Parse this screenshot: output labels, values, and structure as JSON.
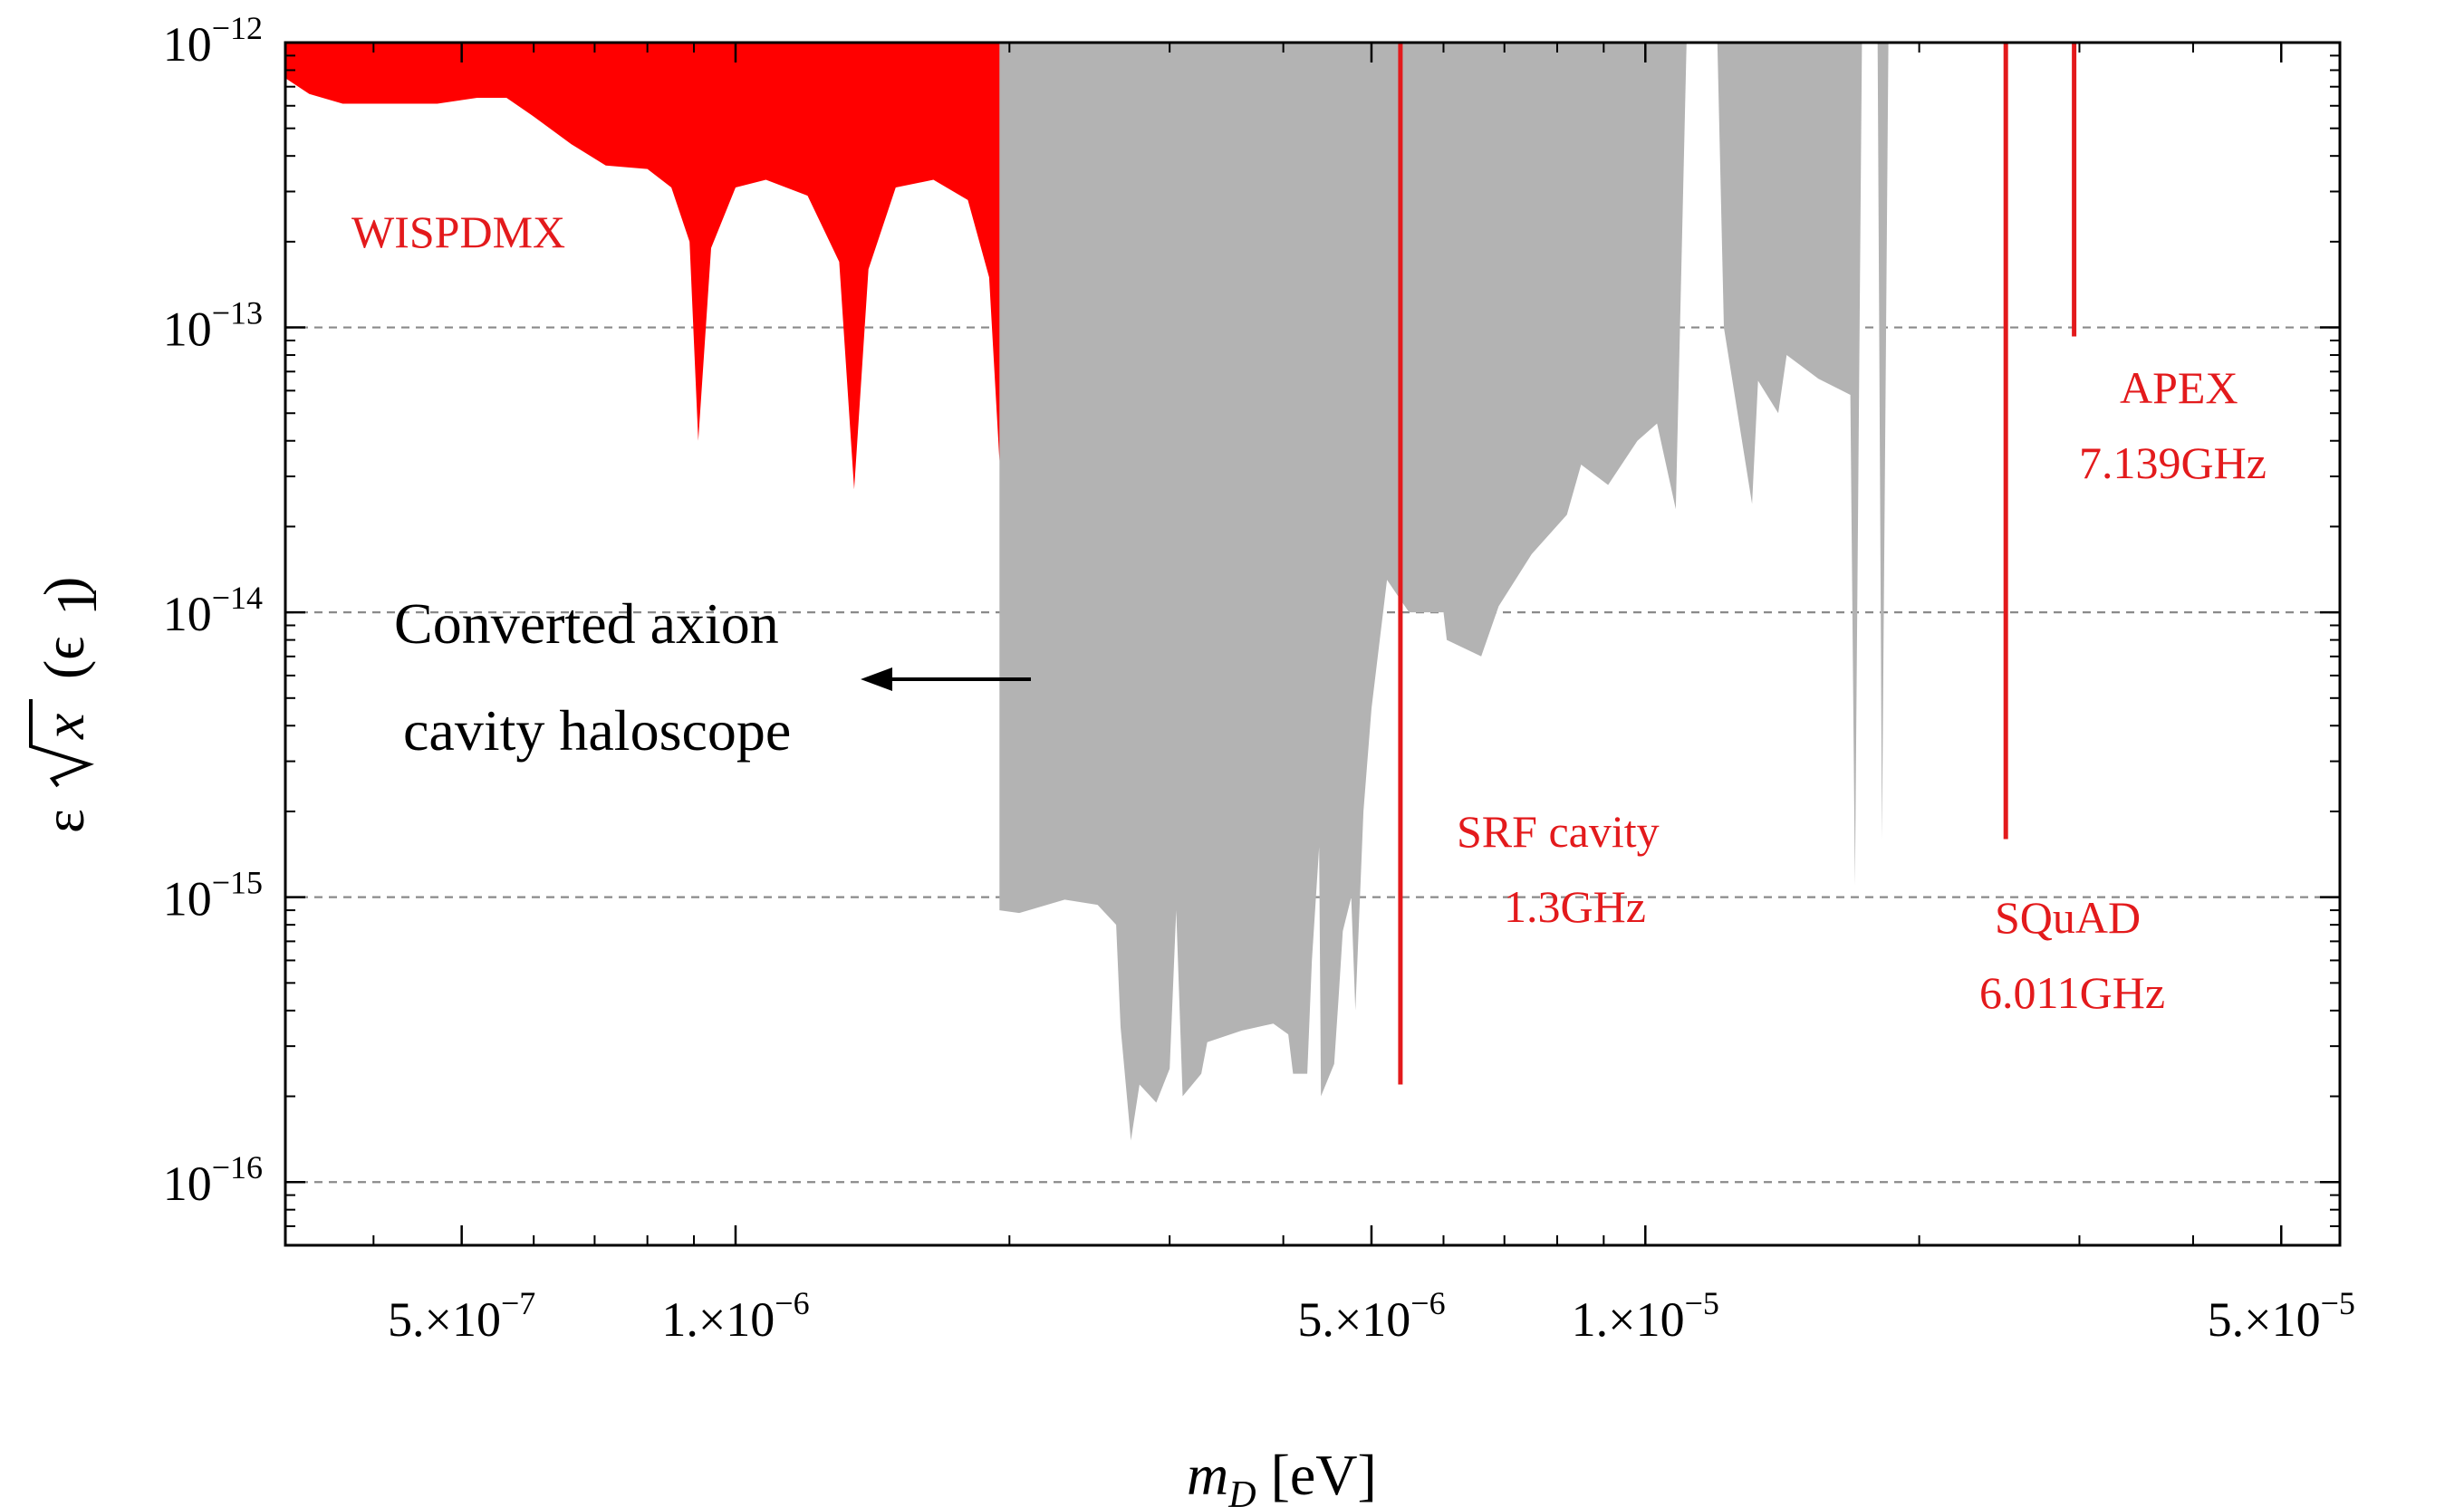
{
  "chart_data": {
    "type": "area",
    "x_scale": "log",
    "y_scale": "log",
    "xlim": [
      3.2e-07,
      5.8e-05
    ],
    "ylim": [
      6e-17,
      1e-12
    ],
    "xlabel": {
      "main": "m",
      "sub": "D",
      "unit": "[eV]"
    },
    "ylabel": {
      "prefix": "ε",
      "radicand": "x",
      "suffix": "(ϵ",
      "suffix_sub": "1",
      "close": ")"
    },
    "x_ticks": [
      {
        "value": 5e-07,
        "mant": "5.×10",
        "exp": "−7"
      },
      {
        "value": 1e-06,
        "mant": "1.×10",
        "exp": "−6"
      },
      {
        "value": 5e-06,
        "mant": "5.×10",
        "exp": "−6"
      },
      {
        "value": 1e-05,
        "mant": "1.×10",
        "exp": "−5"
      },
      {
        "value": 5e-05,
        "mant": "5.×10",
        "exp": "−5"
      }
    ],
    "y_ticks": [
      {
        "value": 1e-12,
        "mant": "10",
        "exp": "−12"
      },
      {
        "value": 1e-13,
        "mant": "10",
        "exp": "−13"
      },
      {
        "value": 1e-14,
        "mant": "10",
        "exp": "−14"
      },
      {
        "value": 1e-15,
        "mant": "10",
        "exp": "−15"
      },
      {
        "value": 1e-16,
        "mant": "10",
        "exp": "−16"
      }
    ],
    "grid": {
      "horizontal_dashed": [
        1e-13,
        1e-14,
        1e-15,
        1e-16
      ]
    },
    "colors": {
      "wispdmx": "#ff0000",
      "haloscope": "#b3b3b3",
      "lines": "#e31a1c",
      "axis": "#000000"
    },
    "series": [
      {
        "name": "WISPDMX",
        "kind": "exclusion_region",
        "boundary": [
          [
            3.2e-07,
            7.5e-13
          ],
          [
            3.4e-07,
            6.6e-13
          ],
          [
            3.7e-07,
            6.1e-13
          ],
          [
            4.3e-07,
            6.1e-13
          ],
          [
            4.7e-07,
            6.1e-13
          ],
          [
            5.2e-07,
            6.4e-13
          ],
          [
            5.6e-07,
            6.4e-13
          ],
          [
            6e-07,
            5.5e-13
          ],
          [
            6.6e-07,
            4.4e-13
          ],
          [
            7.2e-07,
            3.7e-13
          ],
          [
            8e-07,
            3.6e-13
          ],
          [
            8.5e-07,
            3.1e-13
          ],
          [
            8.9e-07,
            2e-13
          ],
          [
            9.1e-07,
            4e-14
          ],
          [
            9.4e-07,
            1.9e-13
          ],
          [
            1e-06,
            3.1e-13
          ],
          [
            1.08e-06,
            3.3e-13
          ],
          [
            1.2e-06,
            2.9e-13
          ],
          [
            1.3e-06,
            1.7e-13
          ],
          [
            1.35e-06,
            2.7e-14
          ],
          [
            1.4e-06,
            1.6e-13
          ],
          [
            1.5e-06,
            3.1e-13
          ],
          [
            1.65e-06,
            3.3e-13
          ],
          [
            1.8e-06,
            2.8e-13
          ],
          [
            1.9e-06,
            1.5e-13
          ],
          [
            1.95e-06,
            3.4e-14
          ],
          [
            1.97e-06,
            1.3e-13
          ],
          [
            2.06e-06,
            3.1e-13
          ],
          [
            2.12e-06,
            3.1e-13
          ],
          [
            2.12e-06,
            1e-12
          ]
        ]
      },
      {
        "name": "Converted axion cavity haloscope",
        "kind": "exclusion_region",
        "boundary": [
          [
            1.95e-06,
            9e-16
          ],
          [
            2.05e-06,
            8.8e-16
          ],
          [
            2.3e-06,
            9.8e-16
          ],
          [
            2.5e-06,
            9.4e-16
          ],
          [
            2.62e-06,
            8e-16
          ],
          [
            2.65e-06,
            3.5e-16
          ],
          [
            2.72e-06,
            1.4e-16
          ],
          [
            2.78e-06,
            2.2e-16
          ],
          [
            2.9e-06,
            1.9e-16
          ],
          [
            3e-06,
            2.5e-16
          ],
          [
            3.05e-06,
            9e-16
          ],
          [
            3.1e-06,
            2e-16
          ],
          [
            3.25e-06,
            2.4e-16
          ],
          [
            3.3e-06,
            3.1e-16
          ],
          [
            3.6e-06,
            3.4e-16
          ],
          [
            3.9e-06,
            3.6e-16
          ],
          [
            4.05e-06,
            3.3e-16
          ],
          [
            4.1e-06,
            2.4e-16
          ],
          [
            4.25e-06,
            2.4e-16
          ],
          [
            4.3e-06,
            6e-16
          ],
          [
            4.38e-06,
            1.5e-15
          ],
          [
            4.4e-06,
            2e-16
          ],
          [
            4.55e-06,
            2.6e-16
          ],
          [
            4.6e-06,
            4.4e-16
          ],
          [
            4.65e-06,
            7.6e-16
          ],
          [
            4.75e-06,
            1e-15
          ],
          [
            4.8e-06,
            4e-16
          ],
          [
            4.9e-06,
            2e-15
          ],
          [
            5e-06,
            4.6e-15
          ],
          [
            5.2e-06,
            1.3e-14
          ],
          [
            5.5e-06,
            1e-14
          ],
          [
            6e-06,
            1e-14
          ],
          [
            6.05e-06,
            8e-15
          ],
          [
            6.6e-06,
            7e-15
          ],
          [
            6.9e-06,
            1.05e-14
          ],
          [
            7.5e-06,
            1.6e-14
          ],
          [
            8.2e-06,
            2.2e-14
          ],
          [
            8.5e-06,
            3.3e-14
          ],
          [
            9.1e-06,
            2.8e-14
          ],
          [
            9.8e-06,
            4e-14
          ],
          [
            1.03e-05,
            4.6e-14
          ],
          [
            1.08e-05,
            2.3e-14
          ],
          [
            1.11e-05,
            1e-12
          ],
          [
            1.2e-05,
            1e-12
          ],
          [
            1.22e-05,
            1e-13
          ],
          [
            1.31e-05,
            2.4e-14
          ],
          [
            1.33e-05,
            6.5e-14
          ],
          [
            1.4e-05,
            5e-14
          ],
          [
            1.43e-05,
            8e-14
          ],
          [
            1.55e-05,
            6.6e-14
          ],
          [
            1.68e-05,
            5.8e-14
          ],
          [
            1.7e-05,
            1.1e-15
          ],
          [
            1.73e-05,
            1e-12
          ],
          [
            1.8e-05,
            1e-12
          ],
          [
            1.82e-05,
            1.6e-15
          ],
          [
            1.85e-05,
            1e-12
          ]
        ]
      },
      {
        "name": "SRF cavity 1.3GHz",
        "kind": "vertical_line",
        "x": 5.38e-06,
        "y_range": [
          2.2e-16,
          1e-12
        ]
      },
      {
        "name": "SQuAD 6.011GHz",
        "kind": "vertical_line",
        "x": 2.49e-05,
        "y_range": [
          1.6e-15,
          1e-12
        ]
      },
      {
        "name": "APEX 7.139GHz",
        "kind": "vertical_line",
        "x": 2.96e-05,
        "y_range": [
          9.3e-14,
          1e-12
        ]
      }
    ]
  },
  "labels": {
    "wispdmx": "WISPDMX",
    "haloscope_line1": "Converted axion",
    "haloscope_line2": "cavity haloscope",
    "srf_line1": "SRF cavity",
    "srf_line2": "1.3GHz",
    "squad_line1": "SQuAD",
    "squad_line2": "6.011GHz",
    "apex_line1": "APEX",
    "apex_line2": "7.139GHz"
  }
}
